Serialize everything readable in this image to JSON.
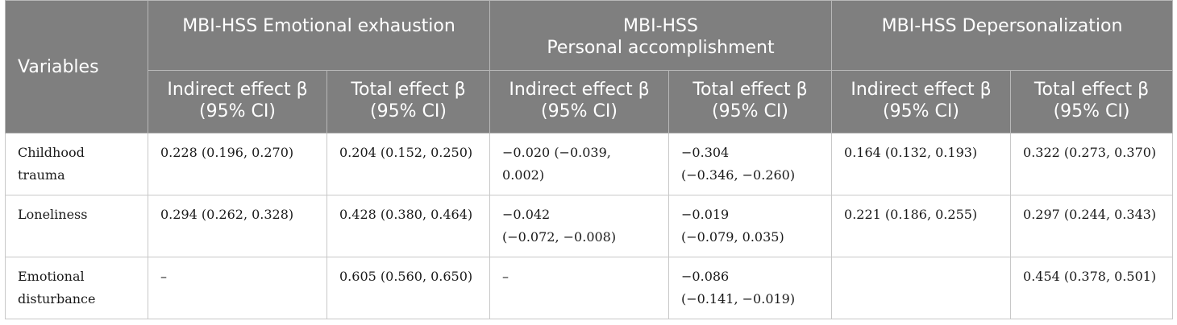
{
  "header": {
    "variables": "Variables",
    "groups": [
      "MBI-HSS Emotional exhaustion",
      "MBI-HSS\nPersonal accomplishment",
      "MBI-HSS Depersonalization"
    ],
    "subheaders": [
      "Indirect effect β\n(95% CI)",
      "Total effect β\n(95% CI)",
      "Indirect effect β\n(95% CI)",
      "Total effect β\n(95% CI)",
      "Indirect effect β\n(95% CI)",
      "Total effect β\n(95% CI)"
    ]
  },
  "rows": [
    {
      "variable": "Childhood\ntrauma",
      "cells": [
        "0.228 (0.196, 0.270)",
        "0.204 (0.152, 0.250)",
        "−0.020 (−0.039, 0.002)",
        "−0.304\n(−0.346, −0.260)",
        "0.164 (0.132, 0.193)",
        "0.322 (0.273, 0.370)"
      ]
    },
    {
      "variable": "Loneliness",
      "cells": [
        "0.294 (0.262, 0.328)",
        "0.428 (0.380, 0.464)",
        "−0.042\n(−0.072, −0.008)",
        "−0.019\n(−0.079, 0.035)",
        "0.221 (0.186, 0.255)",
        "0.297 (0.244, 0.343)"
      ]
    },
    {
      "variable": "Emotional\ndisturbance",
      "cells": [
        "–",
        "0.605 (0.560, 0.650)",
        "–",
        "−0.086\n(−0.141, −0.019)",
        "",
        "0.454 (0.378, 0.501)"
      ]
    }
  ]
}
